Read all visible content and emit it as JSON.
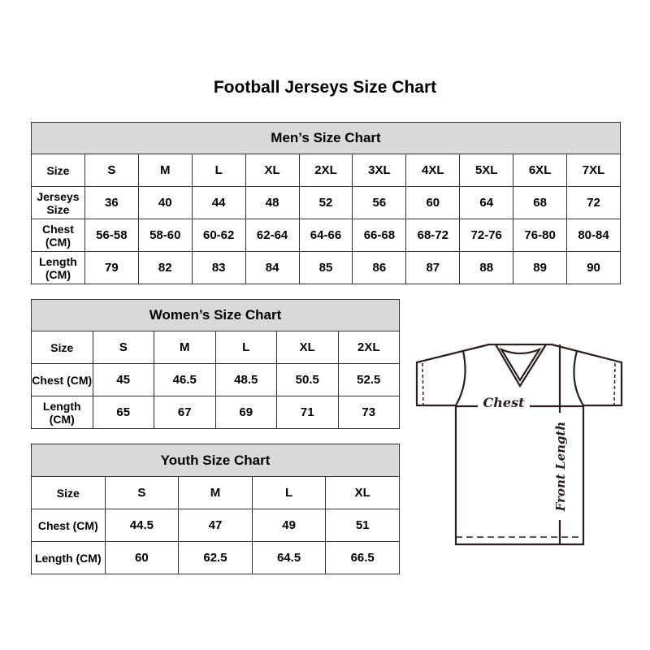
{
  "title": "Football Jerseys Size Chart",
  "men": {
    "title": "Men’s Size Chart",
    "rows": [
      [
        "Size",
        "S",
        "M",
        "L",
        "XL",
        "2XL",
        "3XL",
        "4XL",
        "5XL",
        "6XL",
        "7XL"
      ],
      [
        "Jerseys Size",
        "36",
        "40",
        "44",
        "48",
        "52",
        "56",
        "60",
        "64",
        "68",
        "72"
      ],
      [
        "Chest (CM)",
        "56-58",
        "58-60",
        "60-62",
        "62-64",
        "64-66",
        "66-68",
        "68-72",
        "72-76",
        "76-80",
        "80-84"
      ],
      [
        "Length (CM)",
        "79",
        "82",
        "83",
        "84",
        "85",
        "86",
        "87",
        "88",
        "89",
        "90"
      ]
    ]
  },
  "women": {
    "title": "Women’s Size Chart",
    "rows": [
      [
        "Size",
        "S",
        "M",
        "L",
        "XL",
        "2XL"
      ],
      [
        "Chest (CM)",
        "45",
        "46.5",
        "48.5",
        "50.5",
        "52.5"
      ],
      [
        "Length (CM)",
        "65",
        "67",
        "69",
        "71",
        "73"
      ]
    ]
  },
  "youth": {
    "title": "Youth Size Chart",
    "rows": [
      [
        "Size",
        "S",
        "M",
        "L",
        "XL"
      ],
      [
        "Chest (CM)",
        "44.5",
        "47",
        "49",
        "51"
      ],
      [
        "Length (CM)",
        "60",
        "62.5",
        "64.5",
        "66.5"
      ]
    ]
  },
  "diagram": {
    "chest_label": "Chest",
    "length_label": "Front Length"
  }
}
